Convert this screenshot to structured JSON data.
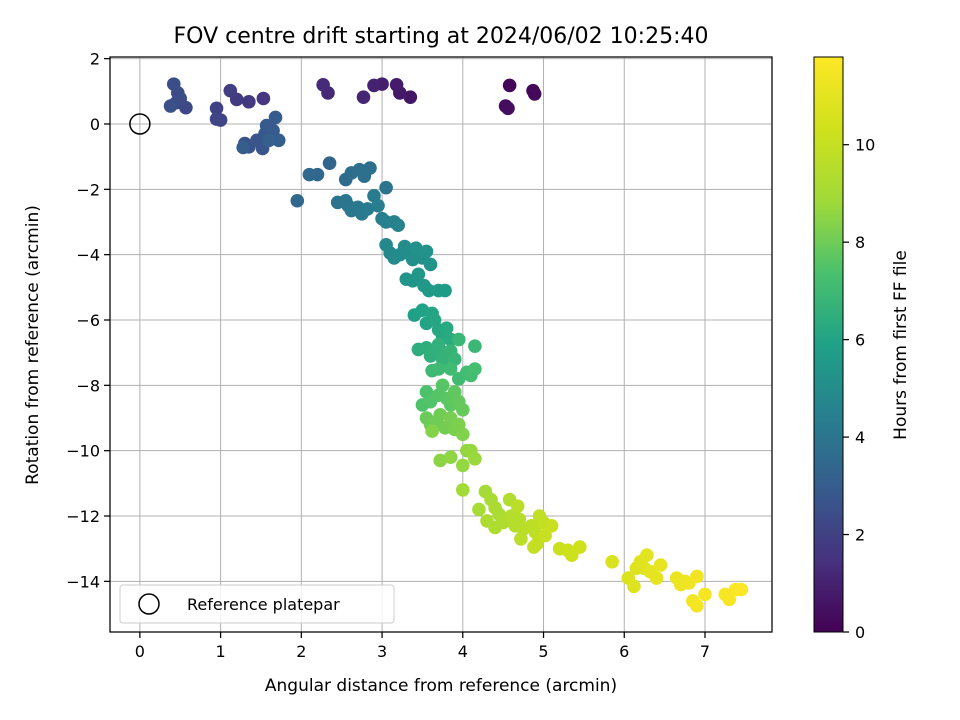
{
  "chart_data": {
    "type": "scatter",
    "title": "FOV centre drift starting at 2024/06/02 10:25:40",
    "xlabel": "Angular distance from reference (arcmin)",
    "ylabel": "Rotation from reference (arcmin)",
    "xlim": [
      -0.37,
      7.83
    ],
    "ylim": [
      -15.55,
      2.05
    ],
    "xticks": [
      "0",
      "1",
      "2",
      "3",
      "4",
      "5",
      "6",
      "7"
    ],
    "yticks": [
      "2",
      "0",
      "−2",
      "−4",
      "−6",
      "−8",
      "−10",
      "−12",
      "−14"
    ],
    "grid": true,
    "colormap": "viridis",
    "colorbar": {
      "label": "Hours from first FF file",
      "range": [
        0,
        11.8
      ],
      "ticks": [
        "0",
        "2",
        "4",
        "6",
        "8",
        "10"
      ]
    },
    "legend": {
      "placement": "lower-left",
      "entries": [
        "Reference platepar"
      ]
    },
    "reference_point": {
      "x": 0,
      "y": 0
    },
    "series": [
      {
        "points": [
          [
            4.58,
            1.18,
            0.15
          ],
          [
            4.87,
            1.02,
            0.2
          ],
          [
            4.89,
            0.92,
            0.25
          ],
          [
            4.53,
            0.55,
            0.3
          ],
          [
            4.56,
            0.48,
            0.35
          ],
          [
            3.35,
            0.82,
            0.6
          ],
          [
            3.22,
            0.95,
            0.7
          ],
          [
            3.18,
            1.2,
            0.8
          ],
          [
            3.0,
            1.22,
            0.9
          ],
          [
            2.9,
            1.18,
            1.0
          ],
          [
            2.77,
            0.82,
            1.1
          ],
          [
            2.33,
            0.95,
            1.2
          ],
          [
            2.27,
            1.2,
            1.25
          ],
          [
            1.53,
            0.78,
            1.6
          ],
          [
            1.35,
            0.68,
            1.7
          ],
          [
            1.2,
            0.75,
            1.8
          ],
          [
            1.12,
            1.02,
            1.9
          ],
          [
            0.95,
            0.48,
            2.0
          ],
          [
            0.95,
            0.15,
            2.1
          ],
          [
            1.0,
            0.12,
            2.15
          ],
          [
            0.57,
            0.5,
            2.25
          ],
          [
            0.45,
            0.65,
            2.3
          ],
          [
            0.5,
            0.78,
            2.35
          ],
          [
            0.47,
            0.95,
            2.4
          ],
          [
            0.42,
            1.22,
            2.45
          ],
          [
            0.38,
            0.55,
            2.5
          ],
          [
            1.3,
            -0.6,
            2.6
          ],
          [
            1.35,
            -0.7,
            2.65
          ],
          [
            1.45,
            -0.5,
            2.7
          ],
          [
            1.52,
            -0.75,
            2.75
          ],
          [
            1.55,
            -0.3,
            2.8
          ],
          [
            1.57,
            -0.05,
            2.85
          ],
          [
            1.65,
            -0.2,
            2.9
          ],
          [
            1.68,
            0.2,
            2.95
          ],
          [
            1.72,
            -0.5,
            3.0
          ],
          [
            1.28,
            -0.72,
            3.05
          ],
          [
            1.6,
            -0.5,
            3.1
          ],
          [
            2.35,
            -1.2,
            3.3
          ],
          [
            2.2,
            -1.55,
            3.4
          ],
          [
            2.1,
            -1.55,
            3.45
          ],
          [
            1.95,
            -2.35,
            3.5
          ],
          [
            2.55,
            -1.7,
            3.6
          ],
          [
            2.62,
            -1.5,
            3.65
          ],
          [
            2.72,
            -1.4,
            3.7
          ],
          [
            2.78,
            -1.6,
            3.75
          ],
          [
            2.85,
            -1.35,
            3.8
          ],
          [
            3.05,
            -1.95,
            3.9
          ],
          [
            2.45,
            -2.4,
            3.95
          ],
          [
            2.55,
            -2.35,
            4.0
          ],
          [
            2.58,
            -2.5,
            4.05
          ],
          [
            2.62,
            -2.65,
            4.1
          ],
          [
            2.7,
            -2.55,
            4.15
          ],
          [
            2.75,
            -2.75,
            4.2
          ],
          [
            2.82,
            -2.6,
            4.25
          ],
          [
            2.9,
            -2.2,
            4.3
          ],
          [
            2.95,
            -2.5,
            4.35
          ],
          [
            3.0,
            -2.9,
            4.4
          ],
          [
            3.05,
            -3.0,
            4.45
          ],
          [
            3.15,
            -3.0,
            4.5
          ],
          [
            3.2,
            -3.1,
            4.55
          ],
          [
            3.05,
            -3.7,
            4.8
          ],
          [
            3.1,
            -3.95,
            4.85
          ],
          [
            3.15,
            -4.1,
            4.9
          ],
          [
            3.22,
            -4.0,
            4.95
          ],
          [
            3.28,
            -3.75,
            5.0
          ],
          [
            3.32,
            -3.95,
            5.05
          ],
          [
            3.38,
            -4.15,
            5.1
          ],
          [
            3.42,
            -3.8,
            5.15
          ],
          [
            3.5,
            -4.1,
            5.2
          ],
          [
            3.55,
            -3.9,
            5.25
          ],
          [
            3.6,
            -4.3,
            5.3
          ],
          [
            3.3,
            -4.75,
            5.35
          ],
          [
            3.38,
            -4.8,
            5.4
          ],
          [
            3.45,
            -4.6,
            5.45
          ],
          [
            3.52,
            -4.95,
            5.5
          ],
          [
            3.58,
            -5.1,
            5.55
          ],
          [
            3.7,
            -5.1,
            5.6
          ],
          [
            3.78,
            -5.1,
            5.65
          ],
          [
            3.4,
            -5.85,
            5.9
          ],
          [
            3.5,
            -5.7,
            5.95
          ],
          [
            3.55,
            -6.1,
            6.0
          ],
          [
            3.62,
            -5.8,
            6.05
          ],
          [
            3.65,
            -6.0,
            6.1
          ],
          [
            3.7,
            -6.3,
            6.15
          ],
          [
            3.75,
            -6.5,
            6.2
          ],
          [
            3.8,
            -6.25,
            6.25
          ],
          [
            3.85,
            -6.6,
            6.3
          ],
          [
            3.45,
            -6.9,
            6.4
          ],
          [
            3.55,
            -6.85,
            6.45
          ],
          [
            3.6,
            -7.1,
            6.5
          ],
          [
            3.65,
            -6.95,
            6.55
          ],
          [
            3.7,
            -6.75,
            6.6
          ],
          [
            3.75,
            -7.2,
            6.65
          ],
          [
            3.8,
            -7.0,
            6.7
          ],
          [
            3.85,
            -6.95,
            6.75
          ],
          [
            3.9,
            -7.2,
            6.8
          ],
          [
            3.95,
            -6.6,
            6.85
          ],
          [
            4.15,
            -6.8,
            6.9
          ],
          [
            3.62,
            -7.55,
            6.95
          ],
          [
            3.7,
            -7.5,
            7.0
          ],
          [
            3.85,
            -7.5,
            7.05
          ],
          [
            3.95,
            -7.8,
            7.1
          ],
          [
            4.05,
            -7.6,
            7.15
          ],
          [
            4.1,
            -7.7,
            7.2
          ],
          [
            4.15,
            -7.5,
            7.25
          ],
          [
            3.55,
            -8.2,
            7.4
          ],
          [
            3.5,
            -8.6,
            7.45
          ],
          [
            3.6,
            -8.5,
            7.5
          ],
          [
            3.7,
            -8.3,
            7.55
          ],
          [
            3.75,
            -8.0,
            7.6
          ],
          [
            3.8,
            -8.4,
            7.65
          ],
          [
            3.85,
            -8.6,
            7.7
          ],
          [
            3.9,
            -8.2,
            7.75
          ],
          [
            3.95,
            -8.5,
            7.8
          ],
          [
            4.0,
            -8.75,
            7.85
          ],
          [
            3.55,
            -9.0,
            7.9
          ],
          [
            3.6,
            -9.2,
            7.95
          ],
          [
            3.68,
            -9.1,
            8.0
          ],
          [
            3.72,
            -8.9,
            8.05
          ],
          [
            3.78,
            -9.3,
            8.1
          ],
          [
            3.85,
            -9.0,
            8.15
          ],
          [
            3.9,
            -9.35,
            8.2
          ],
          [
            3.95,
            -9.2,
            8.25
          ],
          [
            4.0,
            -9.5,
            8.3
          ],
          [
            3.62,
            -9.4,
            8.35
          ],
          [
            3.72,
            -10.3,
            8.5
          ],
          [
            3.85,
            -10.2,
            8.55
          ],
          [
            4.05,
            -10.0,
            8.6
          ],
          [
            4.0,
            -10.45,
            8.65
          ],
          [
            4.1,
            -10.0,
            8.7
          ],
          [
            4.15,
            -10.25,
            8.75
          ],
          [
            4.0,
            -11.2,
            8.9
          ],
          [
            4.28,
            -11.25,
            9.0
          ],
          [
            4.2,
            -11.8,
            9.05
          ],
          [
            4.35,
            -11.5,
            9.1
          ],
          [
            4.4,
            -11.75,
            9.15
          ],
          [
            4.45,
            -11.95,
            9.2
          ],
          [
            4.3,
            -12.15,
            9.25
          ],
          [
            4.4,
            -12.35,
            9.3
          ],
          [
            4.5,
            -12.2,
            9.35
          ],
          [
            4.58,
            -11.5,
            9.4
          ],
          [
            4.6,
            -12.0,
            9.45
          ],
          [
            4.65,
            -12.3,
            9.5
          ],
          [
            4.7,
            -12.1,
            9.55
          ],
          [
            4.75,
            -12.4,
            9.6
          ],
          [
            4.72,
            -12.7,
            9.65
          ],
          [
            4.68,
            -11.7,
            9.7
          ],
          [
            4.85,
            -12.3,
            9.75
          ],
          [
            4.9,
            -12.5,
            9.8
          ],
          [
            4.95,
            -12.0,
            9.85
          ],
          [
            5.0,
            -12.2,
            9.9
          ],
          [
            4.92,
            -12.85,
            9.95
          ],
          [
            4.88,
            -12.95,
            10.0
          ],
          [
            5.02,
            -12.6,
            10.05
          ],
          [
            5.1,
            -12.3,
            10.1
          ],
          [
            5.2,
            -13.0,
            10.15
          ],
          [
            5.3,
            -13.05,
            10.2
          ],
          [
            5.35,
            -13.2,
            10.25
          ],
          [
            5.45,
            -12.95,
            10.3
          ],
          [
            5.85,
            -13.4,
            10.6
          ],
          [
            6.05,
            -13.9,
            10.7
          ],
          [
            6.12,
            -14.15,
            10.75
          ],
          [
            6.15,
            -13.6,
            10.8
          ],
          [
            6.2,
            -13.4,
            10.85
          ],
          [
            6.25,
            -13.6,
            10.9
          ],
          [
            6.28,
            -13.2,
            10.95
          ],
          [
            6.32,
            -13.7,
            11.0
          ],
          [
            6.4,
            -13.9,
            11.05
          ],
          [
            6.45,
            -13.5,
            11.1
          ],
          [
            6.65,
            -13.9,
            11.2
          ],
          [
            6.7,
            -14.1,
            11.25
          ],
          [
            6.75,
            -14.0,
            11.3
          ],
          [
            6.8,
            -14.05,
            11.35
          ],
          [
            6.9,
            -13.85,
            11.4
          ],
          [
            6.85,
            -14.6,
            11.45
          ],
          [
            6.9,
            -14.75,
            11.5
          ],
          [
            7.0,
            -14.4,
            11.55
          ],
          [
            7.25,
            -14.4,
            11.6
          ],
          [
            7.3,
            -14.55,
            11.65
          ],
          [
            7.38,
            -14.25,
            11.7
          ],
          [
            7.45,
            -14.25,
            11.75
          ]
        ]
      }
    ]
  }
}
